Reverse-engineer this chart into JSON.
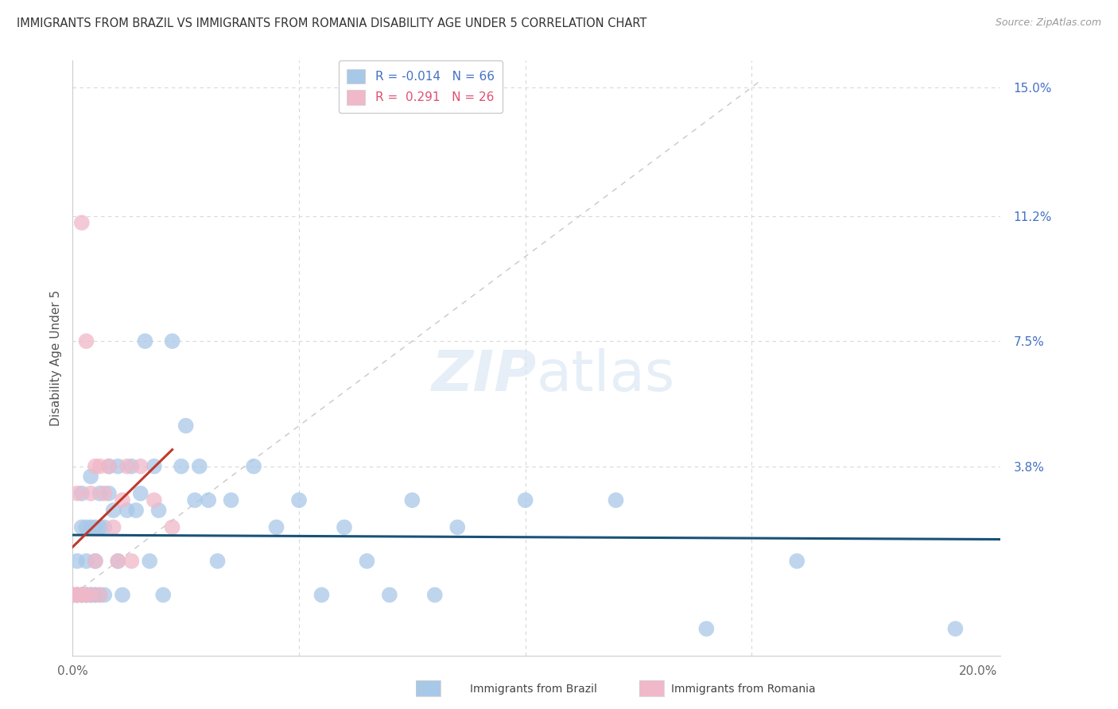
{
  "title": "IMMIGRANTS FROM BRAZIL VS IMMIGRANTS FROM ROMANIA DISABILITY AGE UNDER 5 CORRELATION CHART",
  "source": "Source: ZipAtlas.com",
  "ylabel": "Disability Age Under 5",
  "ytick_labels": [
    "15.0%",
    "11.2%",
    "7.5%",
    "3.8%"
  ],
  "ytick_values": [
    0.15,
    0.112,
    0.075,
    0.038
  ],
  "xlim": [
    0.0,
    0.205
  ],
  "ylim": [
    -0.018,
    0.158
  ],
  "brazil_R": -0.014,
  "brazil_N": 66,
  "romania_R": 0.291,
  "romania_N": 26,
  "brazil_color": "#a8c8e8",
  "romania_color": "#f0b8c8",
  "trendline_brazil_color": "#1a5276",
  "trendline_romania_color": "#c0392b",
  "diagonal_color": "#c8c8c8",
  "brazil_scatter_x": [
    0.0,
    0.0,
    0.001,
    0.001,
    0.001,
    0.001,
    0.002,
    0.002,
    0.002,
    0.002,
    0.003,
    0.003,
    0.003,
    0.003,
    0.003,
    0.004,
    0.004,
    0.004,
    0.004,
    0.005,
    0.005,
    0.005,
    0.005,
    0.006,
    0.006,
    0.006,
    0.007,
    0.007,
    0.008,
    0.008,
    0.009,
    0.01,
    0.01,
    0.011,
    0.012,
    0.013,
    0.014,
    0.015,
    0.016,
    0.017,
    0.018,
    0.019,
    0.02,
    0.022,
    0.024,
    0.025,
    0.027,
    0.028,
    0.03,
    0.032,
    0.035,
    0.04,
    0.045,
    0.05,
    0.055,
    0.06,
    0.065,
    0.07,
    0.075,
    0.08,
    0.085,
    0.1,
    0.12,
    0.14,
    0.16,
    0.195
  ],
  "brazil_scatter_y": [
    0.0,
    0.0,
    0.0,
    0.0,
    0.0,
    0.01,
    0.0,
    0.0,
    0.02,
    0.03,
    0.0,
    0.0,
    0.01,
    0.02,
    0.0,
    0.0,
    0.0,
    0.02,
    0.035,
    0.0,
    0.01,
    0.02,
    0.0,
    0.0,
    0.02,
    0.03,
    0.0,
    0.02,
    0.03,
    0.038,
    0.025,
    0.038,
    0.01,
    0.0,
    0.025,
    0.038,
    0.025,
    0.03,
    0.075,
    0.01,
    0.038,
    0.025,
    0.0,
    0.075,
    0.038,
    0.05,
    0.028,
    0.038,
    0.028,
    0.01,
    0.028,
    0.038,
    0.02,
    0.028,
    0.0,
    0.02,
    0.01,
    0.0,
    0.028,
    0.0,
    0.02,
    0.028,
    0.028,
    -0.01,
    0.01,
    -0.01
  ],
  "romania_scatter_x": [
    0.0,
    0.0,
    0.001,
    0.001,
    0.001,
    0.002,
    0.002,
    0.002,
    0.003,
    0.003,
    0.004,
    0.004,
    0.005,
    0.005,
    0.006,
    0.006,
    0.007,
    0.008,
    0.009,
    0.01,
    0.011,
    0.012,
    0.013,
    0.015,
    0.018,
    0.022
  ],
  "romania_scatter_y": [
    0.0,
    0.0,
    0.0,
    0.03,
    0.0,
    0.0,
    0.11,
    0.0,
    0.0,
    0.075,
    0.0,
    0.03,
    0.038,
    0.01,
    0.038,
    0.0,
    0.03,
    0.038,
    0.02,
    0.01,
    0.028,
    0.038,
    0.01,
    0.038,
    0.028,
    0.02
  ],
  "background_color": "#ffffff",
  "grid_color": "#d8d8d8",
  "title_color": "#333333",
  "source_color": "#999999",
  "legend_brazil_label": "Immigrants from Brazil",
  "legend_romania_label": "Immigrants from Romania"
}
